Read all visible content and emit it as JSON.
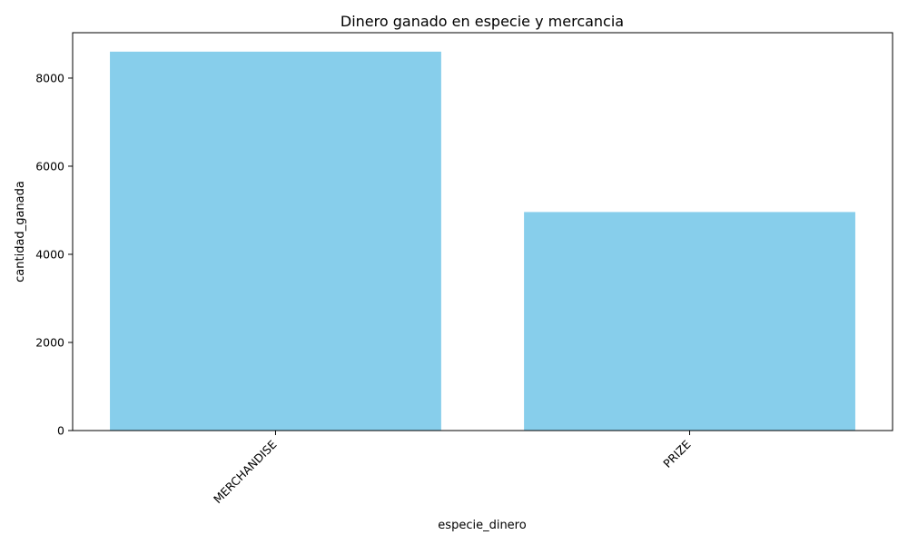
{
  "chart_data": {
    "type": "bar",
    "title": "Dinero ganado en especie y mercancia",
    "xlabel": "especie_dinero",
    "ylabel": "cantidad_ganada",
    "categories": [
      "MERCHANDISE",
      "PRIZE"
    ],
    "values": [
      8600,
      4960
    ],
    "ylim": [
      0,
      9030
    ],
    "yticks": [
      0,
      2000,
      4000,
      6000,
      8000
    ],
    "x_tick_rotation": 45,
    "grid": false,
    "legend": "none",
    "bar_color": "#87CEEB",
    "axis_color": "#000000"
  }
}
